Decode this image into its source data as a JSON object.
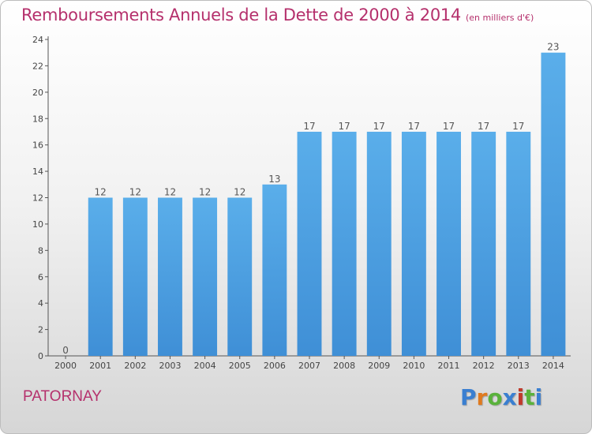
{
  "chart_data": {
    "type": "bar",
    "title": "Remboursements Annuels de la Dette de 2000 à 2014",
    "subtitle": "(en milliers d'€)",
    "categories": [
      "2000",
      "2001",
      "2002",
      "2003",
      "2004",
      "2005",
      "2006",
      "2007",
      "2008",
      "2009",
      "2010",
      "2011",
      "2012",
      "2013",
      "2014"
    ],
    "values": [
      0,
      12,
      12,
      12,
      12,
      12,
      13,
      17,
      17,
      17,
      17,
      17,
      17,
      17,
      23
    ],
    "ylim": [
      0,
      24
    ],
    "yticks": [
      0,
      2,
      4,
      6,
      8,
      10,
      12,
      14,
      16,
      18,
      20,
      22,
      24
    ],
    "grid": false,
    "bar_color": "#3f8fd6"
  },
  "footer": {
    "commune": "PATORNAY",
    "logo_text": "Proxiti",
    "logo_colors": [
      "#3a7fd1",
      "#e07a1f",
      "#5ab23c",
      "#3a7fd1",
      "#c0392b",
      "#5ab23c",
      "#3a7fd1"
    ]
  }
}
